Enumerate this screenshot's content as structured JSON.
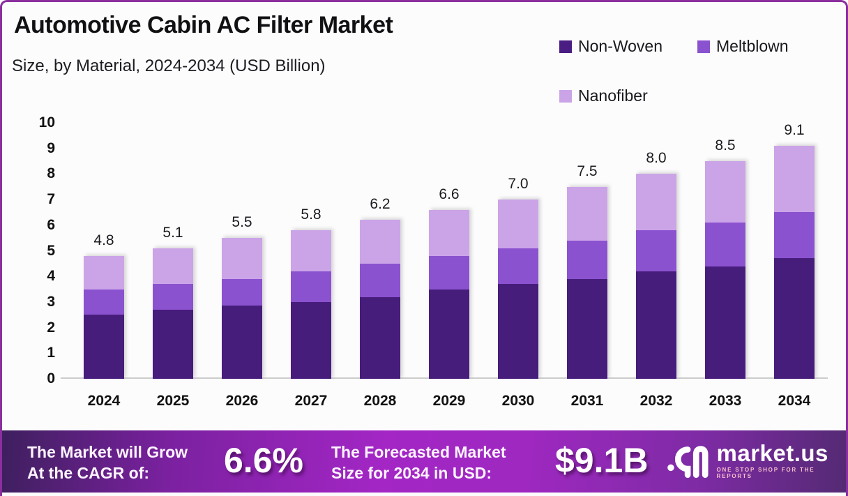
{
  "header": {
    "title": "Automotive Cabin AC Filter Market",
    "subtitle": "Size, by Material, 2024-2034 (USD Billion)"
  },
  "legend": [
    {
      "label": "Non-Woven",
      "color": "#4a1d82"
    },
    {
      "label": "Meltblown",
      "color": "#8b52cf"
    },
    {
      "label": "Nanofiber",
      "color": "#cba4e8"
    }
  ],
  "chart_data": {
    "type": "bar",
    "stacked": true,
    "title": "Automotive Cabin AC Filter Market Size, by Material, 2024-2034 (USD Billion)",
    "categories": [
      "2024",
      "2025",
      "2026",
      "2027",
      "2028",
      "2029",
      "2030",
      "2031",
      "2032",
      "2033",
      "2034"
    ],
    "series": [
      {
        "name": "Non-Woven",
        "color": "#471d7c",
        "values": [
          2.5,
          2.7,
          2.85,
          3.0,
          3.2,
          3.5,
          3.7,
          3.9,
          4.2,
          4.4,
          4.7
        ]
      },
      {
        "name": "Meltblown",
        "color": "#8b52cf",
        "values": [
          1.0,
          1.0,
          1.05,
          1.2,
          1.3,
          1.3,
          1.4,
          1.5,
          1.6,
          1.7,
          1.8
        ]
      },
      {
        "name": "Nanofiber",
        "color": "#cba4e8",
        "values": [
          1.3,
          1.4,
          1.6,
          1.6,
          1.7,
          1.8,
          1.9,
          2.1,
          2.2,
          2.4,
          2.6
        ]
      }
    ],
    "totals": [
      4.8,
      5.1,
      5.5,
      5.8,
      6.2,
      6.6,
      7.0,
      7.5,
      8.0,
      8.5,
      9.1
    ],
    "total_labels": [
      "4.8",
      "5.1",
      "5.5",
      "5.8",
      "6.2",
      "6.6",
      "7.0",
      "7.5",
      "8.0",
      "8.5",
      "9.1"
    ],
    "y_ticks": [
      0,
      1,
      2,
      3,
      4,
      5,
      6,
      7,
      8,
      9,
      10
    ],
    "ylim": [
      0,
      10
    ],
    "xlabel": "",
    "ylabel": "",
    "grid": false,
    "legend_position": "top-right"
  },
  "banner": {
    "cagr_label_line1": "The Market will Grow",
    "cagr_label_line2": "At the CAGR of:",
    "cagr_value": "6.6%",
    "forecast_label_line1": "The Forecasted Market",
    "forecast_label_line2": "Size for 2034 in USD:",
    "forecast_value": "$9.1B",
    "logo_name": "market.us",
    "logo_tagline": "ONE STOP SHOP FOR THE REPORTS"
  },
  "colors": {
    "border": "#8b2f9f",
    "non_woven": "#471d7c",
    "meltblown": "#8b52cf",
    "nanofiber": "#cba4e8",
    "axis_line": "#cccccc",
    "banner_left": "#3e1f5e",
    "banner_mid": "#a326c5",
    "banner_right": "#532a72"
  }
}
